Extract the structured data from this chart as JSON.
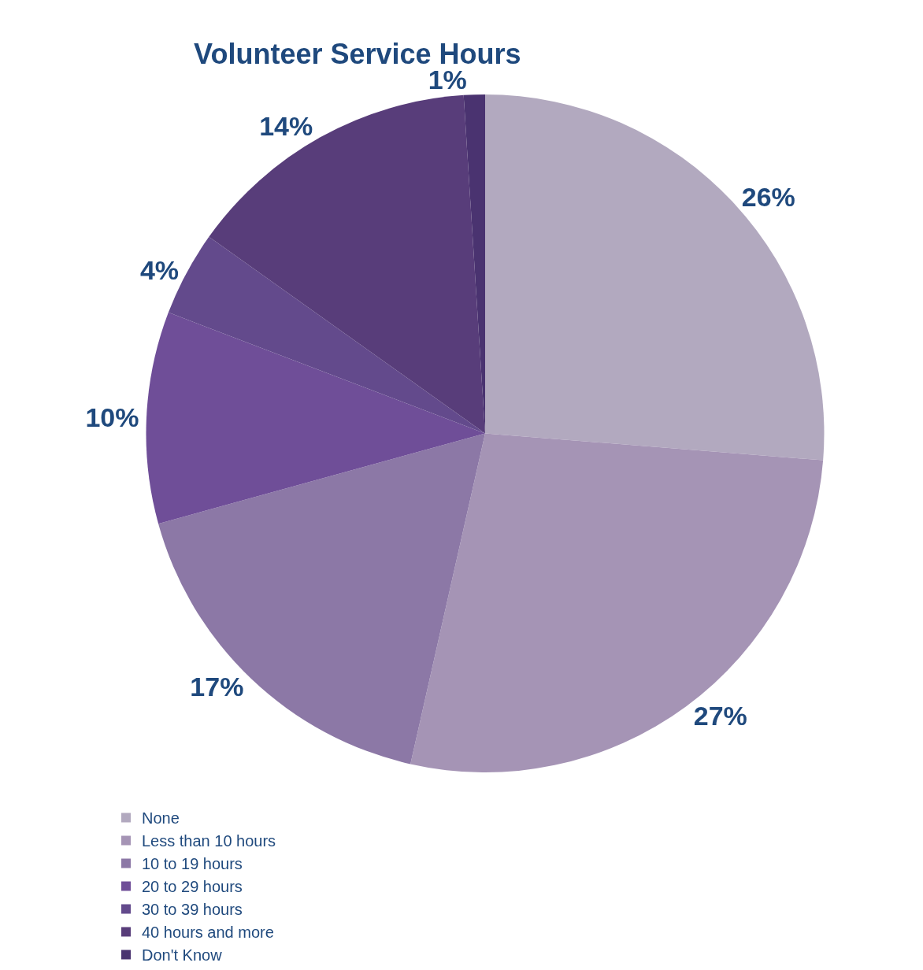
{
  "chart_data": {
    "type": "pie",
    "title": "Volunteer Service Hours",
    "categories": [
      "None",
      "Less than 10 hours",
      "10 to 19 hours",
      "20 to 29 hours",
      "30 to 39 hours",
      "40 hours and more",
      "Don't Know"
    ],
    "values": [
      26,
      27,
      17,
      10,
      4,
      14,
      1
    ],
    "value_labels": [
      "26%",
      "27%",
      "17%",
      "10%",
      "4%",
      "14%",
      "1%"
    ],
    "colors": [
      "#b2a9bf",
      "#a594b5",
      "#8c78a6",
      "#6f4e98",
      "#634a8c",
      "#583d7a",
      "#4a3370"
    ],
    "legend": "bottom"
  }
}
